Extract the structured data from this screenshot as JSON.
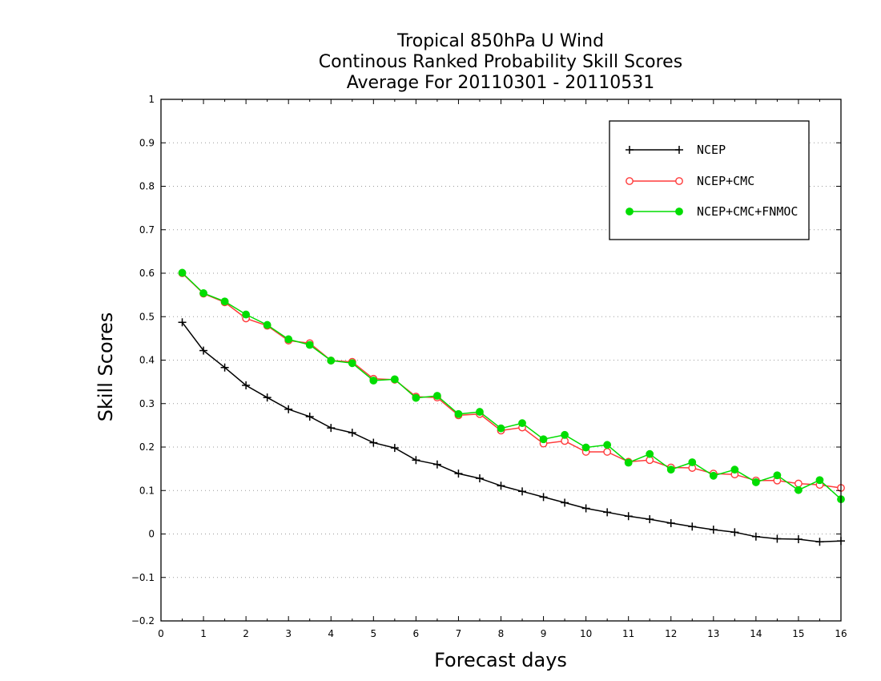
{
  "chart_data": {
    "type": "line",
    "title": [
      "Tropical 850hPa U Wind",
      "Continous Ranked Probability Skill Scores",
      "Average For 20110301 - 20110531"
    ],
    "xlabel": "Forecast days",
    "ylabel": "Skill Scores",
    "xlim": [
      0,
      16
    ],
    "ylim": [
      -0.2,
      1
    ],
    "xticks": [
      "0",
      "1",
      "2",
      "3",
      "4",
      "5",
      "6",
      "7",
      "8",
      "9",
      "10",
      "11",
      "12",
      "13",
      "14",
      "15",
      "16"
    ],
    "yticks": [
      "−0.2",
      "−0.1",
      "0",
      "0.1",
      "0.2",
      "0.3",
      "0.4",
      "0.5",
      "0.6",
      "0.7",
      "0.8",
      "0.9",
      "1"
    ],
    "grid": "horizontal-dotted",
    "legend_position": "top-right",
    "x": [
      0.5,
      1,
      1.5,
      2,
      2.5,
      3,
      3.5,
      4,
      4.5,
      5,
      5.5,
      6,
      6.5,
      7,
      7.5,
      8,
      8.5,
      9,
      9.5,
      10,
      10.5,
      11,
      11.5,
      12,
      12.5,
      13,
      13.5,
      14,
      14.5,
      15,
      15.5,
      16
    ],
    "series": [
      {
        "name": "NCEP",
        "color": "#000000",
        "marker": "plus",
        "values": [
          0.487,
          0.422,
          0.383,
          0.342,
          0.314,
          0.287,
          0.27,
          0.244,
          0.233,
          0.21,
          0.198,
          0.17,
          0.16,
          0.139,
          0.128,
          0.111,
          0.098,
          0.085,
          0.072,
          0.059,
          0.05,
          0.041,
          0.034,
          0.025,
          0.017,
          0.01,
          0.004,
          -0.006,
          -0.011,
          -0.012,
          -0.018,
          -0.016
        ]
      },
      {
        "name": "NCEP+CMC",
        "color": "#ff3b3b",
        "marker": "open-circle",
        "values": [
          0.6,
          0.553,
          0.533,
          0.496,
          0.479,
          0.445,
          0.439,
          0.399,
          0.396,
          0.357,
          0.355,
          0.316,
          0.314,
          0.273,
          0.276,
          0.238,
          0.245,
          0.208,
          0.214,
          0.189,
          0.189,
          0.166,
          0.17,
          0.153,
          0.152,
          0.139,
          0.137,
          0.123,
          0.123,
          0.116,
          0.113,
          0.106
        ]
      },
      {
        "name": "NCEP+CMC+FNMOC",
        "color": "#00dd00",
        "marker": "filled-circle",
        "values": [
          0.601,
          0.554,
          0.535,
          0.505,
          0.481,
          0.448,
          0.435,
          0.399,
          0.393,
          0.353,
          0.356,
          0.313,
          0.318,
          0.276,
          0.281,
          0.243,
          0.255,
          0.218,
          0.228,
          0.199,
          0.205,
          0.164,
          0.184,
          0.148,
          0.165,
          0.134,
          0.148,
          0.119,
          0.135,
          0.101,
          0.124,
          0.08
        ]
      }
    ]
  }
}
